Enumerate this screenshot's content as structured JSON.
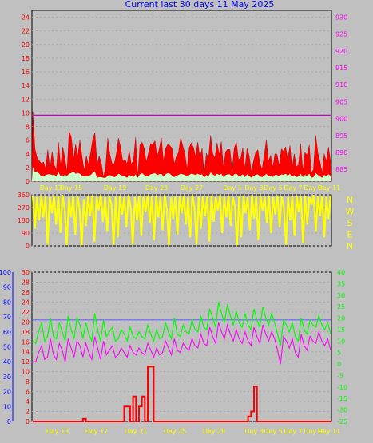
{
  "title": "Current last 30 days 11 May 2025",
  "colors": {
    "background": "#c0c0c0",
    "wind_gust": "#ff0000",
    "wind_avg": "#ccffcc",
    "pressure": "#cc00cc",
    "direction": "#ffff00",
    "temperature": "#00ff00",
    "humidity": "#6666ff",
    "dewpoint": "#ff00ff",
    "rain": "#ff0000",
    "bottom_left_axis": "#0000ff"
  },
  "chart_data": [
    {
      "type": "area",
      "panel": "wind",
      "x_tick_labels": [
        "Day 13",
        "Day 15",
        "Day 19",
        "Day 23",
        "Day 27",
        "Day 1",
        "Day 3",
        "Day 5",
        "Day 7",
        "Day 9",
        "Day 11"
      ],
      "left_axis": {
        "ticks": [
          0,
          2,
          4,
          6,
          8,
          10,
          12,
          14,
          16,
          18,
          20,
          22,
          24
        ],
        "ylim": [
          0,
          25
        ],
        "color": "#ff0000"
      },
      "right_axis": {
        "ticks": [
          885,
          890,
          895,
          900,
          905,
          910,
          915,
          920,
          925,
          930
        ],
        "ylim": [
          881.5,
          932
        ],
        "color": "#ff00ff"
      },
      "series": [
        {
          "id": "gust",
          "values": [
            10.2,
            4.8,
            3.4,
            3.0,
            2.6,
            2.8,
            1.8,
            4.6,
            1.8,
            4.3,
            2.4,
            1.6,
            5.7,
            2.2,
            5.0,
            3.3,
            1.3,
            7.3,
            6.4,
            3.2,
            5.4,
            3.6,
            6.0,
            3.6,
            1.5,
            3.7,
            2.4,
            4.2,
            6.1,
            7.1,
            2.4,
            3.7,
            2.6,
            0.6,
            1.9,
            6.3,
            3.9,
            2.6,
            2.5,
            4.0,
            6.3,
            5.0,
            2.9,
            3.2,
            2.5,
            4.5,
            2.4,
            3.1,
            6.4,
            0.6,
            5.3,
            5.7,
            4.8,
            2.8,
            4.1,
            5.5,
            5.4,
            5.9,
            3.5,
            4.7,
            6.3,
            2.9,
            4.8,
            5.4,
            5.2,
            4.8,
            2.5,
            3.6,
            4.2,
            6.3,
            5.2,
            4.0,
            1.7,
            4.9,
            5.6,
            4.9,
            3.6,
            5.7,
            3.5,
            4.8,
            1.0,
            4.1,
            3.3,
            6.7,
            4.0,
            3.4,
            5.6,
            3.8,
            5.8,
            2.0,
            4.3,
            4.7,
            4.6,
            1.6,
            4.8,
            5.7,
            3.2,
            3.3,
            4.9,
            1.8,
            4.8,
            3.7,
            1.4,
            2.9,
            4.2,
            4.6,
            2.6,
            1.7,
            3.8,
            6.0,
            2.9,
            3.8,
            2.0,
            4.0,
            3.9,
            2.2,
            4.7,
            4.4,
            5.0,
            3.2,
            5.2,
            2.0,
            4.0,
            2.1,
            2.4,
            5.5,
            1.5,
            4.2,
            3.8,
            5.3,
            1.2,
            1.7,
            6.7,
            4.2,
            2.9,
            1.2,
            4.0,
            2.9,
            5.0,
            2.8
          ]
        },
        {
          "id": "avg",
          "values": [
            2.1,
            1.3,
            1.4,
            1.1,
            0.7,
            0.7,
            0.9,
            1.0,
            1.0,
            0.9,
            0.9,
            0.8,
            1.3,
            0.7,
            0.8,
            0.9,
            0.8,
            1.1,
            1.2,
            1.4,
            1.1,
            1.2,
            1.1,
            0.8,
            0.7,
            0.7,
            0.8,
            0.9,
            1.2,
            1.4,
            0.5,
            0.6,
            0.6,
            0.5,
            0.5,
            0.8,
            0.9,
            0.7,
            0.6,
            0.7,
            1.1,
            0.9,
            0.8,
            0.7,
            0.5,
            0.9,
            0.8,
            0.6,
            1.0,
            0.5,
            1.0,
            1.2,
            0.9,
            0.7,
            0.8,
            1.0,
            1.1,
            1.2,
            0.9,
            1.0,
            1.1,
            0.7,
            1.0,
            1.2,
            1.1,
            0.8,
            0.6,
            0.8,
            0.9,
            1.1,
            1.0,
            0.9,
            0.7,
            0.9,
            1.1,
            1.0,
            0.9,
            1.1,
            0.9,
            1.0,
            0.5,
            0.9,
            0.7,
            1.3,
            1.0,
            0.8,
            1.1,
            0.9,
            1.1,
            0.6,
            0.9,
            1.0,
            1.0,
            0.6,
            1.0,
            1.1,
            0.8,
            0.8,
            1.0,
            0.6,
            1.0,
            0.8,
            0.5,
            0.8,
            0.9,
            1.0,
            0.7,
            0.6,
            0.8,
            1.1,
            0.7,
            0.8,
            0.6,
            0.9,
            0.9,
            0.7,
            1.0,
            0.9,
            1.1,
            0.8,
            1.1,
            0.6,
            0.9,
            0.6,
            0.7,
            1.1,
            0.6,
            0.9,
            0.8,
            1.1,
            0.5,
            0.6,
            1.2,
            0.9,
            0.7,
            0.5,
            0.9,
            0.8,
            1.0,
            0.8
          ]
        },
        {
          "id": "pressure",
          "axis": "right",
          "values": [
            901,
            901
          ]
        }
      ]
    },
    {
      "type": "area",
      "panel": "direction",
      "left_axis": {
        "ticks": [
          0,
          90,
          180,
          270,
          360
        ],
        "ylim": [
          0,
          360
        ],
        "color": "#ff0000"
      },
      "right_labels": [
        "N",
        "W",
        "S",
        "E",
        "N"
      ],
      "series": [
        {
          "id": "direction",
          "values": [
            352,
            120,
            345,
            180,
            355,
            200,
            350,
            10,
            345,
            230,
            356,
            150,
            348,
            90,
            360,
            260,
            5,
            340,
            200,
            350,
            80,
            348,
            270,
            3,
            330,
            140,
            352,
            210,
            355,
            30,
            345,
            250,
            358,
            170,
            342,
            100,
            350,
            290,
            8,
            346,
            60,
            355,
            220,
            345,
            130,
            358,
            280,
            12,
            344,
            180,
            352,
            70,
            347,
            240,
            356,
            160,
            349,
            40,
            353,
            200,
            345,
            110,
            358,
            260,
            6,
            343,
            190,
            350,
            80,
            348,
            230,
            355,
            150,
            344,
            60,
            357,
            270,
            10,
            346,
            120,
            352,
            210,
            349,
            30,
            355,
            170,
            342,
            250,
            358,
            90,
            347,
            200,
            353,
            140,
            345,
            280,
            6,
            350,
            60,
            356,
            230,
            343,
            110,
            359,
            190,
            348,
            40,
            354,
            250,
            346,
            160,
            352,
            90,
            345,
            220,
            357,
            130,
            349,
            270,
            8,
            344,
            180,
            351,
            70,
            356,
            240,
            347,
            20,
            353,
            150,
            345,
            290,
            359,
            100,
            348,
            210,
            355,
            60,
            343,
            190,
            352
          ]
        }
      ]
    },
    {
      "type": "line",
      "panel": "climate",
      "left_axis_outer": {
        "ticks": [
          0,
          10,
          20,
          30,
          40,
          50,
          60,
          70,
          80,
          90,
          100
        ],
        "ylim": [
          0,
          100
        ],
        "color": "#0000ff"
      },
      "left_axis_inner": {
        "ticks": [
          0,
          2,
          4,
          6,
          8,
          10,
          12,
          14,
          16,
          18,
          20,
          22,
          24,
          26,
          28,
          30
        ],
        "ylim": [
          0,
          30
        ],
        "color": "#ff0000"
      },
      "right_axis": {
        "ticks": [
          -25,
          -20,
          -15,
          -10,
          -5,
          0,
          5,
          10,
          15,
          20,
          25,
          30,
          35,
          40
        ],
        "ylim": [
          -25,
          40
        ],
        "color": "#00ff00"
      },
      "x_tick_labels": [
        "Day 13",
        "Day 17",
        "Day 21",
        "Day 25",
        "Day 29",
        "Day 3",
        "Day 5",
        "Day 7",
        "Day 9",
        "Day 11"
      ],
      "series": [
        {
          "id": "temperature",
          "axis": "right",
          "values": [
            10,
            9,
            14,
            18,
            10,
            12,
            20,
            12,
            11,
            18,
            14,
            10,
            21,
            15,
            11,
            20,
            17,
            11,
            18,
            13,
            10,
            22,
            15,
            10,
            19,
            12,
            14,
            16,
            10,
            11,
            15,
            13,
            10,
            16,
            12,
            11,
            14,
            12,
            11,
            17,
            13,
            10,
            15,
            11,
            12,
            18,
            14,
            11,
            20,
            13,
            12,
            17,
            14,
            13,
            19,
            15,
            14,
            21,
            16,
            15,
            24,
            20,
            16,
            27,
            22,
            18,
            26,
            21,
            17,
            23,
            18,
            16,
            22,
            17,
            15,
            24,
            19,
            16,
            25,
            20,
            17,
            22,
            18,
            13,
            8,
            19,
            17,
            14,
            18,
            12,
            10,
            20,
            15,
            13,
            19,
            17,
            16,
            21,
            17,
            15,
            18,
            13
          ]
        },
        {
          "id": "humidity",
          "axis": "outer",
          "values": [
            68,
            68,
            68,
            68,
            68,
            68,
            68,
            68,
            68,
            68,
            68,
            68,
            68,
            68,
            68,
            68,
            68,
            68,
            68,
            68,
            68,
            68,
            68,
            68,
            68,
            68,
            68,
            68,
            68,
            68,
            68,
            68,
            68,
            68,
            68,
            68,
            68,
            68,
            68,
            68,
            68,
            68,
            68,
            68,
            68,
            68,
            68,
            68,
            68,
            68,
            68,
            68,
            68,
            68,
            68,
            68,
            68,
            68,
            68,
            68,
            68,
            68,
            68,
            68,
            68,
            68,
            68,
            68,
            68,
            68,
            68,
            68,
            68,
            68,
            68,
            68,
            68,
            68,
            68,
            68,
            68,
            68,
            68,
            68,
            68,
            68,
            68,
            68,
            68,
            68,
            68,
            68,
            68,
            68,
            68,
            68,
            68,
            68,
            68,
            68,
            68,
            68
          ]
        },
        {
          "id": "dewpoint",
          "axis": "right",
          "values": [
            1,
            1,
            5,
            8,
            2,
            3,
            11,
            4,
            2,
            9,
            6,
            1,
            11,
            7,
            3,
            10,
            8,
            3,
            9,
            5,
            2,
            12,
            7,
            2,
            10,
            4,
            6,
            8,
            3,
            4,
            7,
            5,
            3,
            8,
            5,
            4,
            7,
            5,
            4,
            9,
            6,
            3,
            7,
            4,
            5,
            10,
            7,
            4,
            11,
            6,
            5,
            9,
            7,
            6,
            11,
            8,
            7,
            13,
            9,
            8,
            16,
            12,
            9,
            18,
            14,
            11,
            17,
            13,
            10,
            15,
            11,
            9,
            14,
            10,
            8,
            16,
            12,
            9,
            17,
            13,
            10,
            14,
            11,
            6,
            0,
            12,
            10,
            7,
            11,
            5,
            3,
            13,
            8,
            6,
            12,
            10,
            9,
            14,
            10,
            8,
            11,
            6
          ]
        },
        {
          "id": "rain",
          "axis": "inner",
          "values": [
            0,
            0,
            0,
            0,
            0,
            0,
            0,
            0,
            0,
            0,
            0,
            0,
            0,
            0,
            0,
            0,
            0,
            0.5,
            0,
            0,
            0,
            0,
            0,
            0,
            0,
            0,
            0,
            0,
            0,
            0,
            0,
            3,
            3,
            0,
            5,
            0,
            3,
            5,
            0,
            11,
            11,
            0,
            0,
            0,
            0,
            0,
            0,
            0,
            0,
            0,
            0,
            0,
            0,
            0,
            0,
            0,
            0,
            0,
            0,
            0,
            0,
            0,
            0,
            0,
            0,
            0,
            0,
            0,
            0,
            0,
            0,
            0,
            0,
            1,
            2,
            7,
            0,
            0,
            0,
            0,
            0,
            0,
            0,
            0,
            0,
            0,
            0,
            0,
            0,
            0,
            0,
            0,
            0,
            0,
            0,
            0,
            0,
            0,
            0,
            0,
            0,
            0
          ]
        }
      ]
    }
  ]
}
